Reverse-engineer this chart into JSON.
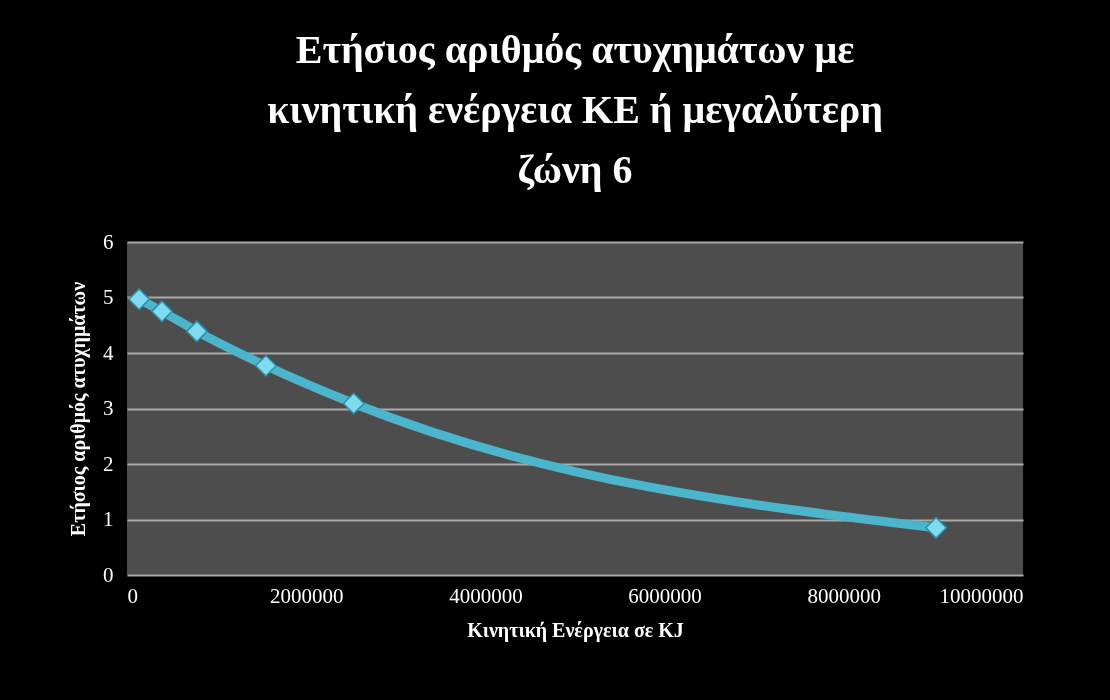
{
  "chart_data": {
    "type": "line",
    "title": "Ετήσιος αριθμός ατυχημάτων με κινητική ενέργεια ΚΕ ή μεγαλύτερη ζώνη 6",
    "xlabel": "Κινητική Ενέργεια  σε KJ",
    "ylabel": "Ετήσιος αριθμός ατυχημάτων",
    "x": [
      135000,
      390000,
      780000,
      1550000,
      2530000,
      9030000
    ],
    "series": [
      {
        "color": "#4bb5cc",
        "values": [
          4.97,
          4.75,
          4.39,
          3.77,
          3.09,
          0.85
        ]
      }
    ],
    "xlim": [
      0,
      10000000
    ],
    "xticks": [
      0,
      2000000,
      4000000,
      6000000,
      8000000,
      10000000
    ],
    "ylim": [
      0,
      6
    ],
    "yticks": [
      0,
      1,
      2,
      3,
      4,
      5,
      6
    ],
    "grid": "y",
    "marker": "diamond"
  }
}
